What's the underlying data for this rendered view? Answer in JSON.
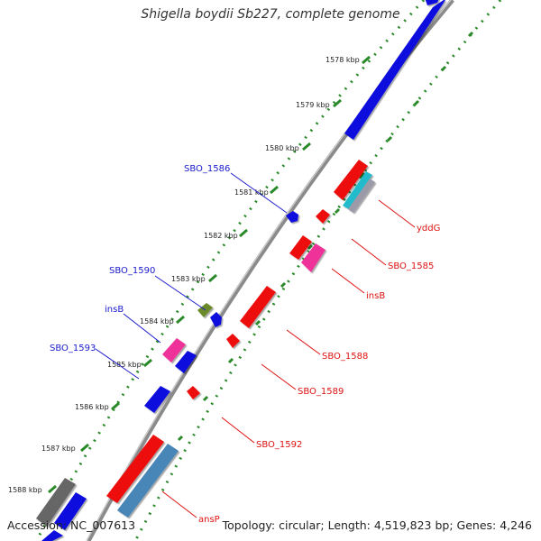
{
  "header": {
    "title": "Shigella boydii Sb227, complete genome"
  },
  "footer": {
    "accession": "Accession: NC_007613",
    "summary": "Topology: circular; Length: 4,519,823 bp; Genes: 4,246"
  },
  "colors": {
    "forward_label": "#1a1acc",
    "reverse_label": "#dd1111",
    "forward_gene": "#1010dd",
    "reverse_gene": "#ee1111",
    "insertion": "#ee3399",
    "trna": "#22bbcc",
    "pseudo": "#557722",
    "backbone": "#888888",
    "tick": "#2a8a2a"
  },
  "map": {
    "kbp_ticks": [
      "1578 kbp",
      "1579 kbp",
      "1580 kbp",
      "1581 kbp",
      "1582 kbp",
      "1583 kbp",
      "1584 kbp",
      "1585 kbp",
      "1586 kbp",
      "1587 kbp",
      "1588 kbp"
    ],
    "forward_labels": [
      "SBO_1586",
      "SBO_1590",
      "insB",
      "SBO_1593"
    ],
    "reverse_labels": [
      "yddG",
      "SBO_1585",
      "insB",
      "SBO_1588",
      "SBO_1589",
      "SBO_1592",
      "ansP"
    ]
  }
}
